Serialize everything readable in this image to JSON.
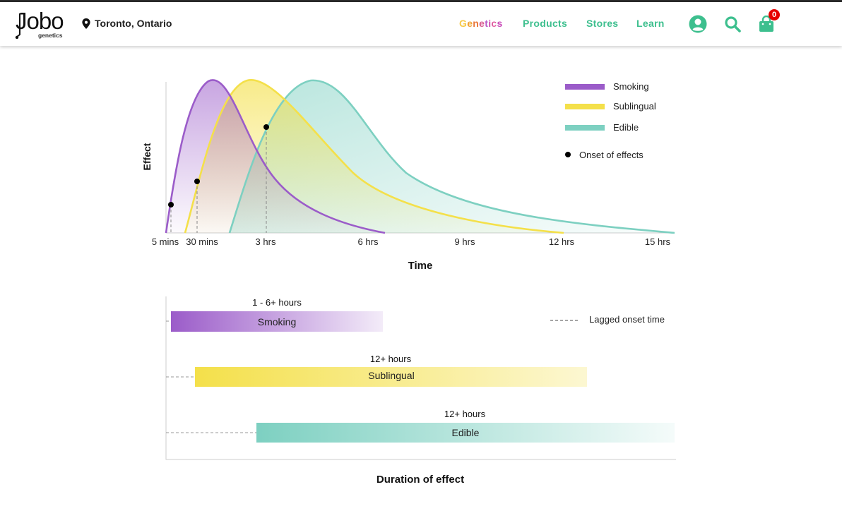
{
  "header": {
    "logo_word": "Jobo",
    "logo_sub": "genetics",
    "location": "Toronto, Ontario",
    "nav": {
      "genetics_letters": [
        "G",
        "e",
        "n",
        "e",
        "t",
        "i",
        "c",
        "s"
      ],
      "genetics_colors": [
        "#f7c948",
        "#f0a030",
        "#e9763a",
        "#d85a90",
        "#b85ac8",
        "#d04fb0",
        "#e05da0",
        "#c84ab8"
      ],
      "products": "Products",
      "stores": "Stores",
      "learn": "Learn"
    },
    "cart_count": "0",
    "icons": [
      "user-circle-icon",
      "search-icon",
      "shopping-bag-icon",
      "map-pin-icon"
    ]
  },
  "colors": {
    "smoking": "#9b5cc9",
    "sublingual": "#f4e04a",
    "edible": "#7dd0c1",
    "nav_green": "#3dbf8e",
    "badge_red": "#e60000"
  },
  "chart_data": [
    {
      "type": "line",
      "xlabel": "Time",
      "ylabel": "Effect",
      "x_ticks": [
        "5 mins",
        "30 mins",
        "3 hrs",
        "6 hrs",
        "9 hrs",
        "12 hrs",
        "15 hrs"
      ],
      "y_scale": "relative",
      "series": [
        {
          "name": "Smoking",
          "start": "5 mins",
          "peak": "~1 hr",
          "end": "6 hrs",
          "onset": "10 mins"
        },
        {
          "name": "Sublingual",
          "start": "~20 mins",
          "peak": "~2.5 hrs",
          "end": "12 hrs",
          "onset": "30 mins"
        },
        {
          "name": "Edible",
          "start": "~1.5 hrs",
          "peak": "~4.5 hrs",
          "end": "15 hrs",
          "onset": "3 hrs"
        }
      ],
      "legend": [
        "Smoking",
        "Sublingual",
        "Edible",
        "Onset of effects"
      ],
      "legend_position": "top-right"
    },
    {
      "type": "bar",
      "title": "",
      "xlabel": "Duration of effect",
      "categories": [
        "Smoking",
        "Sublingual",
        "Edible"
      ],
      "duration_labels": [
        "1 - 6+ hours",
        "12+ hours",
        "12+ hours"
      ],
      "legend": [
        "Lagged onset time"
      ],
      "legend_position": "top-right"
    }
  ]
}
